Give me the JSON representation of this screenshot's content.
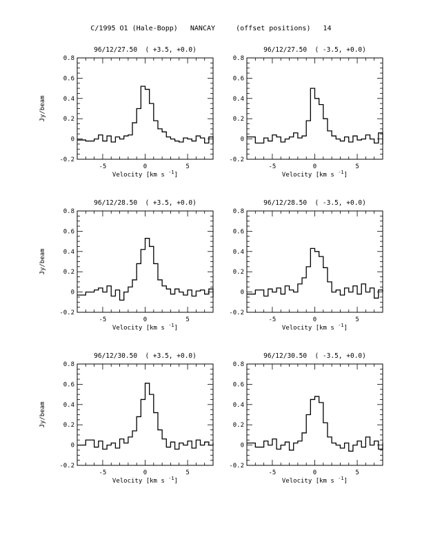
{
  "page_title": "C/1995 O1 (Hale-Bopp)   NANCAY     (offset positions)   14",
  "chart_data": [
    {
      "type": "line",
      "title": "96/12/27.50  ( +3.5, +0.0)",
      "xlabel": "Velocity [km s",
      "xlabel_sup": "-1",
      "xlabel_close": "]",
      "ylabel": "Jy/beam",
      "xlim": [
        -8,
        8
      ],
      "ylim": [
        -0.2,
        0.8
      ],
      "xticks": [
        {
          "v": -5,
          "label": "-5"
        },
        {
          "v": 0,
          "label": "0"
        },
        {
          "v": 5,
          "label": "5"
        }
      ],
      "yticks": [
        {
          "v": -0.2,
          "label": "-0.2"
        },
        {
          "v": 0,
          "label": "0"
        },
        {
          "v": 0.2,
          "label": "0.2"
        },
        {
          "v": 0.4,
          "label": "0.4"
        },
        {
          "v": 0.6,
          "label": "0.6"
        },
        {
          "v": 0.8,
          "label": "0.8"
        }
      ],
      "series": [
        {
          "x": [
            -8,
            -7,
            -6,
            -5.5,
            -5,
            -4.5,
            -4,
            -3.5,
            -3,
            -2.5,
            -2,
            -1.5,
            -1,
            -0.5,
            0,
            0.5,
            1,
            1.5,
            2,
            2.5,
            3,
            3.5,
            4,
            4.5,
            5,
            5.5,
            6,
            6.5,
            7,
            7.5,
            8
          ],
          "y": [
            -0.01,
            -0.02,
            0.0,
            0.04,
            -0.02,
            0.03,
            -0.03,
            0.02,
            0.0,
            0.03,
            0.04,
            0.16,
            0.3,
            0.52,
            0.49,
            0.35,
            0.18,
            0.1,
            0.07,
            0.02,
            0.0,
            -0.02,
            -0.03,
            0.01,
            0.0,
            -0.02,
            0.03,
            0.01,
            -0.04,
            0.02,
            -0.05
          ]
        }
      ]
    },
    {
      "type": "line",
      "title": "96/12/27.50  ( -3.5, +0.0)",
      "xlabel": "Velocity [km s",
      "xlabel_sup": "-1",
      "xlabel_close": "]",
      "ylabel": "",
      "xlim": [
        -8,
        8
      ],
      "ylim": [
        -0.2,
        0.8
      ],
      "xticks": [
        {
          "v": -5,
          "label": "-5"
        },
        {
          "v": 0,
          "label": "0"
        },
        {
          "v": 5,
          "label": "5"
        }
      ],
      "yticks": [
        {
          "v": -0.2,
          "label": "-0.2"
        },
        {
          "v": 0,
          "label": "0"
        },
        {
          "v": 0.2,
          "label": "0.2"
        },
        {
          "v": 0.4,
          "label": "0.4"
        },
        {
          "v": 0.6,
          "label": "0.6"
        },
        {
          "v": 0.8,
          "label": "0.8"
        }
      ],
      "series": [
        {
          "x": [
            -8,
            -7,
            -6,
            -5.5,
            -5,
            -4.5,
            -4,
            -3.5,
            -3,
            -2.5,
            -2,
            -1.5,
            -1,
            -0.5,
            0,
            0.5,
            1,
            1.5,
            2,
            2.5,
            3,
            3.5,
            4,
            4.5,
            5,
            5.5,
            6,
            6.5,
            7,
            7.5,
            8
          ],
          "y": [
            0.02,
            -0.04,
            0.01,
            -0.02,
            0.04,
            0.02,
            -0.03,
            0.0,
            0.02,
            0.06,
            0.01,
            0.03,
            0.18,
            0.5,
            0.4,
            0.34,
            0.2,
            0.08,
            0.03,
            0.0,
            -0.02,
            0.02,
            -0.03,
            0.03,
            -0.01,
            0.0,
            0.04,
            0.0,
            -0.04,
            0.06,
            -0.05
          ]
        }
      ]
    },
    {
      "type": "line",
      "title": "96/12/28.50  ( +3.5, +0.0)",
      "xlabel": "Velocity [km s",
      "xlabel_sup": "-1",
      "xlabel_close": "]",
      "ylabel": "Jy/beam",
      "xlim": [
        -8,
        8
      ],
      "ylim": [
        -0.2,
        0.8
      ],
      "xticks": [
        {
          "v": -5,
          "label": "-5"
        },
        {
          "v": 0,
          "label": "0"
        },
        {
          "v": 5,
          "label": "5"
        }
      ],
      "yticks": [
        {
          "v": -0.2,
          "label": "-0.2"
        },
        {
          "v": 0,
          "label": "0"
        },
        {
          "v": 0.2,
          "label": "0.2"
        },
        {
          "v": 0.4,
          "label": "0.4"
        },
        {
          "v": 0.6,
          "label": "0.6"
        },
        {
          "v": 0.8,
          "label": "0.8"
        }
      ],
      "series": [
        {
          "x": [
            -8,
            -7,
            -6,
            -5.5,
            -5,
            -4.5,
            -4,
            -3.5,
            -3,
            -2.5,
            -2,
            -1.5,
            -1,
            -0.5,
            0,
            0.5,
            1,
            1.5,
            2,
            2.5,
            3,
            3.5,
            4,
            4.5,
            5,
            5.5,
            6,
            6.5,
            7,
            7.5,
            8
          ],
          "y": [
            -0.03,
            0.0,
            0.02,
            0.04,
            0.0,
            0.06,
            -0.04,
            0.02,
            -0.08,
            0.0,
            0.05,
            0.12,
            0.28,
            0.42,
            0.53,
            0.45,
            0.28,
            0.12,
            0.06,
            0.03,
            -0.02,
            0.03,
            0.0,
            -0.03,
            0.02,
            -0.04,
            0.01,
            0.02,
            -0.02,
            0.03,
            -0.05
          ]
        }
      ]
    },
    {
      "type": "line",
      "title": "96/12/28.50  ( -3.5, +0.0)",
      "xlabel": "Velocity [km s",
      "xlabel_sup": "-1",
      "xlabel_close": "]",
      "ylabel": "",
      "xlim": [
        -8,
        8
      ],
      "ylim": [
        -0.2,
        0.8
      ],
      "xticks": [
        {
          "v": -5,
          "label": "-5"
        },
        {
          "v": 0,
          "label": "0"
        },
        {
          "v": 5,
          "label": "5"
        }
      ],
      "yticks": [
        {
          "v": -0.2,
          "label": "-0.2"
        },
        {
          "v": 0,
          "label": "0"
        },
        {
          "v": 0.2,
          "label": "0.2"
        },
        {
          "v": 0.4,
          "label": "0.4"
        },
        {
          "v": 0.6,
          "label": "0.6"
        },
        {
          "v": 0.8,
          "label": "0.8"
        }
      ],
      "series": [
        {
          "x": [
            -8,
            -7,
            -6,
            -5.5,
            -5,
            -4.5,
            -4,
            -3.5,
            -3,
            -2.5,
            -2,
            -1.5,
            -1,
            -0.5,
            0,
            0.5,
            1,
            1.5,
            2,
            2.5,
            3,
            3.5,
            4,
            4.5,
            5,
            5.5,
            6,
            6.5,
            7,
            7.5,
            8
          ],
          "y": [
            -0.02,
            0.02,
            -0.04,
            0.03,
            0.0,
            0.04,
            -0.02,
            0.06,
            0.02,
            0.0,
            0.08,
            0.14,
            0.25,
            0.43,
            0.4,
            0.35,
            0.24,
            0.1,
            0.0,
            0.02,
            -0.03,
            0.04,
            0.0,
            0.06,
            -0.02,
            0.08,
            0.0,
            0.04,
            -0.06,
            0.02,
            0.0
          ]
        }
      ]
    },
    {
      "type": "line",
      "title": "96/12/30.50  ( +3.5, +0.0)",
      "xlabel": "Velocity [km s",
      "xlabel_sup": "-1",
      "xlabel_close": "]",
      "ylabel": "Jy/beam",
      "xlim": [
        -8,
        8
      ],
      "ylim": [
        -0.2,
        0.8
      ],
      "xticks": [
        {
          "v": -5,
          "label": "-5"
        },
        {
          "v": 0,
          "label": "0"
        },
        {
          "v": 5,
          "label": "5"
        }
      ],
      "yticks": [
        {
          "v": -0.2,
          "label": "-0.2"
        },
        {
          "v": 0,
          "label": "0"
        },
        {
          "v": 0.2,
          "label": "0.2"
        },
        {
          "v": 0.4,
          "label": "0.4"
        },
        {
          "v": 0.6,
          "label": "0.6"
        },
        {
          "v": 0.8,
          "label": "0.8"
        }
      ],
      "series": [
        {
          "x": [
            -8,
            -7,
            -6,
            -5.5,
            -5,
            -4.5,
            -4,
            -3.5,
            -3,
            -2.5,
            -2,
            -1.5,
            -1,
            -0.5,
            0,
            0.5,
            1,
            1.5,
            2,
            2.5,
            3,
            3.5,
            4,
            4.5,
            5,
            5.5,
            6,
            6.5,
            7,
            7.5,
            8
          ],
          "y": [
            0.0,
            0.05,
            -0.02,
            0.04,
            -0.04,
            0.0,
            0.02,
            -0.03,
            0.06,
            0.02,
            0.08,
            0.14,
            0.28,
            0.45,
            0.61,
            0.5,
            0.32,
            0.15,
            0.06,
            -0.02,
            0.03,
            -0.04,
            0.02,
            0.0,
            0.04,
            -0.03,
            0.05,
            0.0,
            0.03,
            0.0,
            0.02
          ]
        }
      ]
    },
    {
      "type": "line",
      "title": "96/12/30.50  ( -3.5, +0.0)",
      "xlabel": "Velocity [km s",
      "xlabel_sup": "-1",
      "xlabel_close": "]",
      "ylabel": "",
      "xlim": [
        -8,
        8
      ],
      "ylim": [
        -0.2,
        0.8
      ],
      "xticks": [
        {
          "v": -5,
          "label": "-5"
        },
        {
          "v": 0,
          "label": "0"
        },
        {
          "v": 5,
          "label": "5"
        }
      ],
      "yticks": [
        {
          "v": -0.2,
          "label": "-0.2"
        },
        {
          "v": 0,
          "label": "0"
        },
        {
          "v": 0.2,
          "label": "0.2"
        },
        {
          "v": 0.4,
          "label": "0.4"
        },
        {
          "v": 0.6,
          "label": "0.6"
        },
        {
          "v": 0.8,
          "label": "0.8"
        }
      ],
      "series": [
        {
          "x": [
            -8,
            -7,
            -6,
            -5.5,
            -5,
            -4.5,
            -4,
            -3.5,
            -3,
            -2.5,
            -2,
            -1.5,
            -1,
            -0.5,
            0,
            0.5,
            1,
            1.5,
            2,
            2.5,
            3,
            3.5,
            4,
            4.5,
            5,
            5.5,
            6,
            6.5,
            7,
            7.5,
            8
          ],
          "y": [
            0.02,
            -0.02,
            0.04,
            0.0,
            0.06,
            -0.04,
            0.0,
            0.03,
            -0.05,
            0.02,
            0.04,
            0.12,
            0.3,
            0.45,
            0.48,
            0.42,
            0.22,
            0.08,
            0.02,
            0.0,
            -0.03,
            0.02,
            -0.06,
            0.0,
            0.04,
            -0.02,
            0.08,
            0.0,
            0.04,
            -0.04,
            0.02
          ]
        }
      ]
    }
  ]
}
